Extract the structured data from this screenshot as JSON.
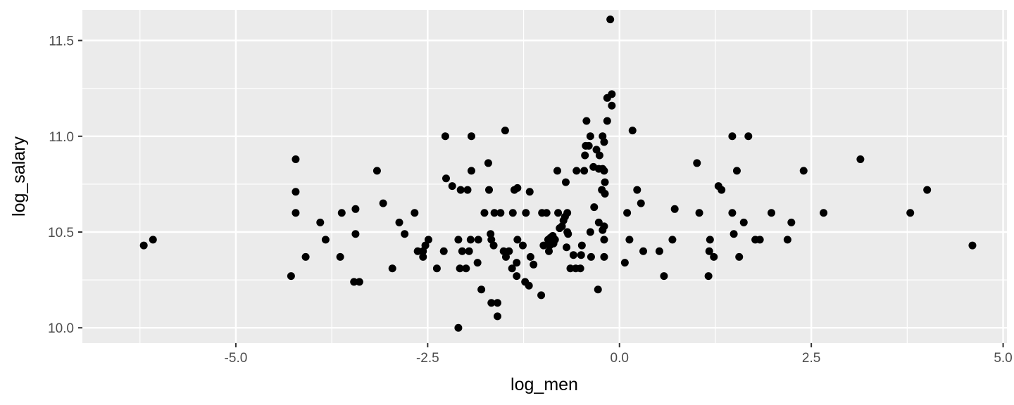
{
  "chart_data": {
    "type": "scatter",
    "xlabel": "log_men",
    "ylabel": "log_salary",
    "xlim": [
      -7.0,
      5.05
    ],
    "ylim": [
      9.92,
      11.66
    ],
    "x_ticks": [
      -5.0,
      -2.5,
      0.0,
      2.5,
      5.0
    ],
    "x_tick_labels": [
      "-5.0",
      "-2.5",
      "0.0",
      "2.5",
      "5.0"
    ],
    "y_ticks": [
      10.0,
      10.5,
      11.0,
      11.5
    ],
    "y_tick_labels": [
      "10.0",
      "10.5",
      "11.0",
      "11.5"
    ],
    "grid": true,
    "panel_color": "#ebebeb",
    "point_color": "#000000",
    "points": [
      [
        -6.2,
        10.43
      ],
      [
        -6.08,
        10.46
      ],
      [
        -4.28,
        10.27
      ],
      [
        -4.22,
        10.71
      ],
      [
        -4.22,
        10.88
      ],
      [
        -4.22,
        10.6
      ],
      [
        -4.09,
        10.37
      ],
      [
        -3.9,
        10.55
      ],
      [
        -3.83,
        10.46
      ],
      [
        -3.64,
        10.37
      ],
      [
        -3.62,
        10.6
      ],
      [
        -3.46,
        10.24
      ],
      [
        -3.44,
        10.62
      ],
      [
        -3.44,
        10.49
      ],
      [
        -3.39,
        10.24
      ],
      [
        -3.16,
        10.82
      ],
      [
        -3.08,
        10.65
      ],
      [
        -2.96,
        10.31
      ],
      [
        -2.87,
        10.55
      ],
      [
        -2.8,
        10.49
      ],
      [
        -2.67,
        10.6
      ],
      [
        -2.63,
        10.4
      ],
      [
        -2.56,
        10.4
      ],
      [
        -2.56,
        10.37
      ],
      [
        -2.53,
        10.43
      ],
      [
        -2.49,
        10.46
      ],
      [
        -2.38,
        10.31
      ],
      [
        -2.29,
        10.4
      ],
      [
        -2.27,
        11.0
      ],
      [
        -2.26,
        10.78
      ],
      [
        -2.18,
        10.74
      ],
      [
        -2.1,
        10.46
      ],
      [
        -2.1,
        10.0
      ],
      [
        -2.08,
        10.31
      ],
      [
        -2.07,
        10.72
      ],
      [
        -2.05,
        10.4
      ],
      [
        -2.0,
        10.31
      ],
      [
        -1.98,
        10.72
      ],
      [
        -1.96,
        10.4
      ],
      [
        -1.94,
        10.46
      ],
      [
        -1.93,
        11.0
      ],
      [
        -1.93,
        10.82
      ],
      [
        -1.84,
        10.46
      ],
      [
        -1.85,
        10.34
      ],
      [
        -1.8,
        10.2
      ],
      [
        -1.76,
        10.6
      ],
      [
        -1.71,
        10.86
      ],
      [
        -1.7,
        10.72
      ],
      [
        -1.68,
        10.49
      ],
      [
        -1.67,
        10.46
      ],
      [
        -1.67,
        10.13
      ],
      [
        -1.64,
        10.43
      ],
      [
        -1.63,
        10.6
      ],
      [
        -1.59,
        10.13
      ],
      [
        -1.59,
        10.06
      ],
      [
        -1.55,
        10.6
      ],
      [
        -1.51,
        10.4
      ],
      [
        -1.49,
        11.03
      ],
      [
        -1.48,
        10.37
      ],
      [
        -1.44,
        10.4
      ],
      [
        -1.4,
        10.31
      ],
      [
        -1.39,
        10.6
      ],
      [
        -1.37,
        10.72
      ],
      [
        -1.34,
        10.27
      ],
      [
        -1.34,
        10.34
      ],
      [
        -1.33,
        10.46
      ],
      [
        -1.33,
        10.73
      ],
      [
        -1.26,
        10.43
      ],
      [
        -1.23,
        10.24
      ],
      [
        -1.22,
        10.6
      ],
      [
        -1.18,
        10.22
      ],
      [
        -1.17,
        10.71
      ],
      [
        -1.16,
        10.37
      ],
      [
        -1.12,
        10.33
      ],
      [
        -1.02,
        10.17
      ],
      [
        -1.01,
        10.6
      ],
      [
        -0.99,
        10.43
      ],
      [
        -0.95,
        10.6
      ],
      [
        -0.93,
        10.46
      ],
      [
        -0.92,
        10.4
      ],
      [
        -0.91,
        10.43
      ],
      [
        -0.9,
        10.47
      ],
      [
        -0.87,
        10.48
      ],
      [
        -0.86,
        10.44
      ],
      [
        -0.84,
        10.46
      ],
      [
        -0.81,
        10.82
      ],
      [
        -0.8,
        10.6
      ],
      [
        -0.78,
        10.52
      ],
      [
        -0.75,
        10.53
      ],
      [
        -0.73,
        10.56
      ],
      [
        -0.71,
        10.58
      ],
      [
        -0.7,
        10.76
      ],
      [
        -0.69,
        10.42
      ],
      [
        -0.68,
        10.5
      ],
      [
        -0.68,
        10.6
      ],
      [
        -0.67,
        10.49
      ],
      [
        -0.64,
        10.31
      ],
      [
        -0.6,
        10.38
      ],
      [
        -0.57,
        10.31
      ],
      [
        -0.56,
        10.82
      ],
      [
        -0.51,
        10.31
      ],
      [
        -0.5,
        10.38
      ],
      [
        -0.49,
        10.43
      ],
      [
        -0.46,
        10.82
      ],
      [
        -0.45,
        10.9
      ],
      [
        -0.44,
        10.95
      ],
      [
        -0.43,
        11.08
      ],
      [
        -0.4,
        10.95
      ],
      [
        -0.38,
        11.0
      ],
      [
        -0.38,
        10.5
      ],
      [
        -0.37,
        10.37
      ],
      [
        -0.34,
        10.84
      ],
      [
        -0.33,
        10.63
      ],
      [
        -0.3,
        10.93
      ],
      [
        -0.28,
        10.2
      ],
      [
        -0.27,
        10.55
      ],
      [
        -0.27,
        10.83
      ],
      [
        -0.26,
        10.9
      ],
      [
        -0.23,
        10.72
      ],
      [
        -0.22,
        10.83
      ],
      [
        -0.22,
        10.51
      ],
      [
        -0.22,
        11.0
      ],
      [
        -0.2,
        10.97
      ],
      [
        -0.2,
        10.82
      ],
      [
        -0.2,
        10.53
      ],
      [
        -0.2,
        10.46
      ],
      [
        -0.2,
        10.37
      ],
      [
        -0.19,
        10.7
      ],
      [
        -0.19,
        10.76
      ],
      [
        -0.16,
        11.2
      ],
      [
        -0.16,
        11.08
      ],
      [
        -0.12,
        11.61
      ],
      [
        -0.1,
        11.16
      ],
      [
        -0.1,
        11.22
      ],
      [
        0.07,
        10.34
      ],
      [
        0.1,
        10.6
      ],
      [
        0.13,
        10.46
      ],
      [
        0.17,
        11.03
      ],
      [
        0.23,
        10.72
      ],
      [
        0.28,
        10.65
      ],
      [
        0.31,
        10.4
      ],
      [
        0.52,
        10.4
      ],
      [
        0.58,
        10.27
      ],
      [
        0.69,
        10.46
      ],
      [
        0.72,
        10.62
      ],
      [
        1.01,
        10.86
      ],
      [
        1.04,
        10.6
      ],
      [
        1.16,
        10.27
      ],
      [
        1.17,
        10.4
      ],
      [
        1.18,
        10.46
      ],
      [
        1.23,
        10.37
      ],
      [
        1.29,
        10.74
      ],
      [
        1.33,
        10.72
      ],
      [
        1.47,
        11.0
      ],
      [
        1.47,
        10.6
      ],
      [
        1.49,
        10.49
      ],
      [
        1.53,
        10.82
      ],
      [
        1.56,
        10.37
      ],
      [
        1.62,
        10.55
      ],
      [
        1.68,
        11.0
      ],
      [
        1.77,
        10.46
      ],
      [
        1.83,
        10.46
      ],
      [
        1.98,
        10.6
      ],
      [
        2.19,
        10.46
      ],
      [
        2.24,
        10.55
      ],
      [
        2.4,
        10.82
      ],
      [
        2.66,
        10.6
      ],
      [
        3.14,
        10.88
      ],
      [
        3.79,
        10.6
      ],
      [
        4.01,
        10.72
      ],
      [
        4.6,
        10.43
      ]
    ]
  }
}
